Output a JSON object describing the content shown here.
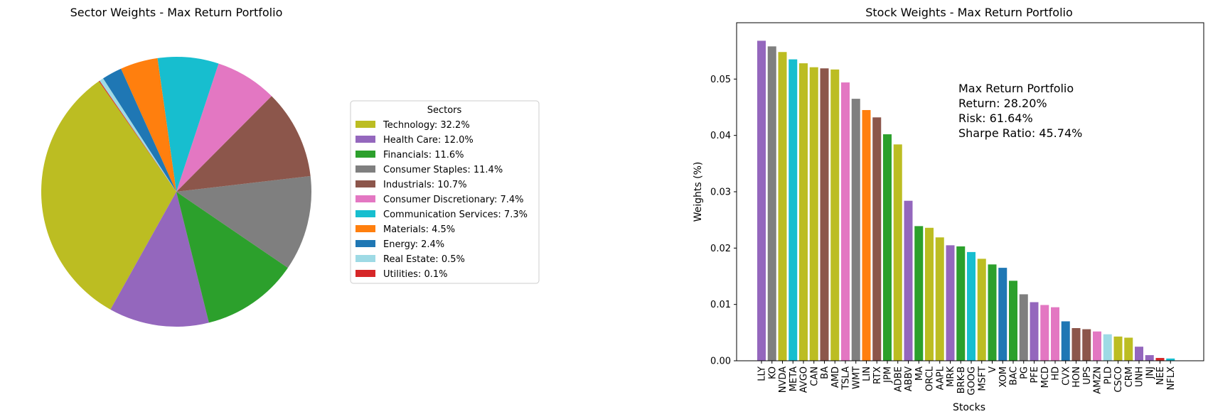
{
  "colors": {
    "Technology": "#bcbd22",
    "Health Care": "#9467bd",
    "Financials": "#2ca02c",
    "Consumer Staples": "#7f7f7f",
    "Industrials": "#8c564b",
    "Consumer Discretionary": "#e377c2",
    "Communication Services": "#17becf",
    "Materials": "#ff7f0e",
    "Energy": "#1f77b4",
    "Real Estate": "#9edae5",
    "Utilities": "#d62728"
  },
  "chart_data": [
    {
      "type": "pie",
      "title": "Sector Weights - Max Return Portfolio",
      "legend_title": "Sectors",
      "legend_placement": "right",
      "start_angle_deg": 125,
      "direction": "counterclockwise",
      "slices": [
        {
          "label": "Technology",
          "value": 32.2,
          "legend": "Technology: 32.2%"
        },
        {
          "label": "Health Care",
          "value": 12.0,
          "legend": "Health Care: 12.0%"
        },
        {
          "label": "Financials",
          "value": 11.6,
          "legend": "Financials: 11.6%"
        },
        {
          "label": "Consumer Staples",
          "value": 11.4,
          "legend": "Consumer Staples: 11.4%"
        },
        {
          "label": "Industrials",
          "value": 10.7,
          "legend": "Industrials: 10.7%"
        },
        {
          "label": "Consumer Discretionary",
          "value": 7.4,
          "legend": "Consumer Discretionary: 7.4%"
        },
        {
          "label": "Communication Services",
          "value": 7.3,
          "legend": "Communication Services: 7.3%"
        },
        {
          "label": "Materials",
          "value": 4.5,
          "legend": "Materials: 4.5%"
        },
        {
          "label": "Energy",
          "value": 2.4,
          "legend": "Energy: 2.4%"
        },
        {
          "label": "Real Estate",
          "value": 0.5,
          "legend": "Real Estate: 0.5%"
        },
        {
          "label": "Utilities",
          "value": 0.1,
          "legend": "Utilities: 0.1%"
        }
      ]
    },
    {
      "type": "bar",
      "title": "Stock Weights - Max Return Portfolio",
      "xlabel": "Stocks",
      "ylabel": "Weights (%)",
      "ylim": [
        0,
        0.06
      ],
      "yticks": [
        0.0,
        0.01,
        0.02,
        0.03,
        0.04,
        0.05
      ],
      "ytick_labels": [
        "0.00",
        "0.01",
        "0.02",
        "0.03",
        "0.04",
        "0.05"
      ],
      "grid": false,
      "annotation": [
        "Max Return Portfolio",
        "Return: 28.20%",
        "Risk: 61.64%",
        "Sharpe Ratio: 45.74%"
      ],
      "bars": [
        {
          "label": "LLY",
          "value": 0.0568,
          "sector": "Health Care"
        },
        {
          "label": "KO",
          "value": 0.0558,
          "sector": "Consumer Staples"
        },
        {
          "label": "NVDA",
          "value": 0.0548,
          "sector": "Technology"
        },
        {
          "label": "META",
          "value": 0.0535,
          "sector": "Communication Services"
        },
        {
          "label": "AVGO",
          "value": 0.0528,
          "sector": "Technology"
        },
        {
          "label": "CAN",
          "value": 0.0521,
          "sector": "Technology"
        },
        {
          "label": "BA",
          "value": 0.0519,
          "sector": "Industrials"
        },
        {
          "label": "AMD",
          "value": 0.0517,
          "sector": "Technology"
        },
        {
          "label": "TSLA",
          "value": 0.0494,
          "sector": "Consumer Discretionary"
        },
        {
          "label": "WMT",
          "value": 0.0465,
          "sector": "Consumer Staples"
        },
        {
          "label": "LIN",
          "value": 0.0445,
          "sector": "Materials"
        },
        {
          "label": "RTX",
          "value": 0.0432,
          "sector": "Industrials"
        },
        {
          "label": "JPM",
          "value": 0.0402,
          "sector": "Financials"
        },
        {
          "label": "ADBE",
          "value": 0.0384,
          "sector": "Technology"
        },
        {
          "label": "ABBV",
          "value": 0.0284,
          "sector": "Health Care"
        },
        {
          "label": "MA",
          "value": 0.0239,
          "sector": "Financials"
        },
        {
          "label": "ORCL",
          "value": 0.0236,
          "sector": "Technology"
        },
        {
          "label": "AAPL",
          "value": 0.0219,
          "sector": "Technology"
        },
        {
          "label": "MRK",
          "value": 0.0205,
          "sector": "Health Care"
        },
        {
          "label": "BRK-B",
          "value": 0.0203,
          "sector": "Financials"
        },
        {
          "label": "GOOG",
          "value": 0.0193,
          "sector": "Communication Services"
        },
        {
          "label": "MSFT",
          "value": 0.0181,
          "sector": "Technology"
        },
        {
          "label": "V",
          "value": 0.0171,
          "sector": "Financials"
        },
        {
          "label": "XOM",
          "value": 0.0165,
          "sector": "Energy"
        },
        {
          "label": "BAC",
          "value": 0.0142,
          "sector": "Financials"
        },
        {
          "label": "PG",
          "value": 0.0118,
          "sector": "Consumer Staples"
        },
        {
          "label": "PFE",
          "value": 0.0104,
          "sector": "Health Care"
        },
        {
          "label": "MCD",
          "value": 0.0099,
          "sector": "Consumer Discretionary"
        },
        {
          "label": "HD",
          "value": 0.0095,
          "sector": "Consumer Discretionary"
        },
        {
          "label": "CVX",
          "value": 0.007,
          "sector": "Energy"
        },
        {
          "label": "HON",
          "value": 0.0058,
          "sector": "Industrials"
        },
        {
          "label": "UPS",
          "value": 0.0056,
          "sector": "Industrials"
        },
        {
          "label": "AMZN",
          "value": 0.0052,
          "sector": "Consumer Discretionary"
        },
        {
          "label": "PLD",
          "value": 0.0047,
          "sector": "Real Estate"
        },
        {
          "label": "CSCO",
          "value": 0.0043,
          "sector": "Technology"
        },
        {
          "label": "CRM",
          "value": 0.0041,
          "sector": "Technology"
        },
        {
          "label": "UNH",
          "value": 0.0025,
          "sector": "Health Care"
        },
        {
          "label": "JNJ",
          "value": 0.001,
          "sector": "Health Care"
        },
        {
          "label": "NEE",
          "value": 0.0005,
          "sector": "Utilities"
        },
        {
          "label": "NFLX",
          "value": 0.0004,
          "sector": "Communication Services"
        }
      ]
    }
  ]
}
